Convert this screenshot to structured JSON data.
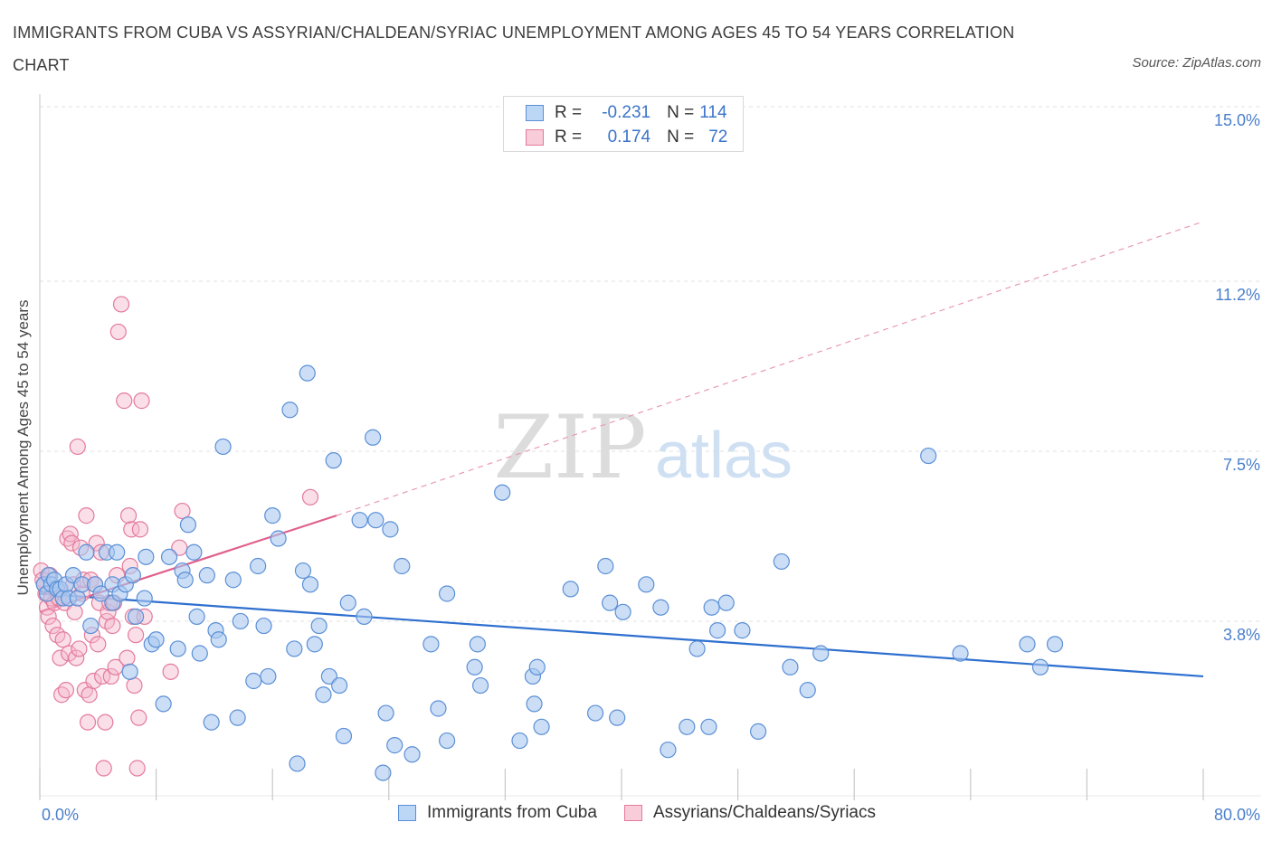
{
  "header": {
    "title": "IMMIGRANTS FROM CUBA VS ASSYRIAN/CHALDEAN/SYRIAC UNEMPLOYMENT AMONG AGES 45 TO 54 YEARS CORRELATION CHART",
    "source": "Source: ZipAtlas.com"
  },
  "watermark": {
    "zip": "ZIP",
    "atlas": "atlas"
  },
  "legend": {
    "rows": [
      {
        "r_label": "R =",
        "r_value": "-0.231",
        "n_label": "N =",
        "n_value": "114",
        "color": "#a8c8f0"
      },
      {
        "r_label": "R =",
        "r_value": "0.174",
        "n_label": "N =",
        "n_value": "72",
        "color": "#f5b8cb"
      }
    ]
  },
  "bottom_legend": {
    "items": [
      {
        "label": "Immigrants from Cuba",
        "color": "#a8c8f0"
      },
      {
        "label": "Assyrians/Chaldeans/Syriacs",
        "color": "#f5b8cb"
      }
    ]
  },
  "colors": {
    "blue_fill": "#a8c8f0",
    "blue_stroke": "#5b8fd6",
    "blue_line": "#2e6fcf",
    "pink_fill": "#f5b8cb",
    "pink_stroke": "#e47a9c",
    "pink_line": "#e0608c",
    "axis_text": "#4a7fcb"
  },
  "chart_data": {
    "type": "scatter",
    "title": "IMMIGRANTS FROM CUBA VS ASSYRIAN/CHALDEAN/SYRIAC UNEMPLOYMENT AMONG AGES 45 TO 54 YEARS CORRELATION CHART",
    "xlabel": "",
    "ylabel": "Unemployment Among Ages 45 to 54 years",
    "xlim": [
      0,
      80
    ],
    "ylim": [
      0,
      15
    ],
    "x_tick_labels": [
      "0.0%",
      "80.0%"
    ],
    "y_ticks": [
      3.8,
      7.5,
      11.2,
      15.0
    ],
    "y_tick_labels": [
      "3.8%",
      "7.5%",
      "11.2%",
      "15.0%"
    ],
    "grid": true,
    "legend_position": "top-center",
    "series": [
      {
        "name": "Immigrants from Cuba",
        "stats": {
          "R": -0.231,
          "N": 114
        },
        "trend": {
          "x0": 0,
          "y0": 4.4,
          "x1": 80,
          "y1": 2.6,
          "dashed_from": null
        },
        "points": [
          [
            0.3,
            4.6
          ],
          [
            0.5,
            4.4
          ],
          [
            0.6,
            4.8
          ],
          [
            0.8,
            4.6
          ],
          [
            1.0,
            4.7
          ],
          [
            1.2,
            4.5
          ],
          [
            1.4,
            4.5
          ],
          [
            1.6,
            4.3
          ],
          [
            1.8,
            4.6
          ],
          [
            2.0,
            4.3
          ],
          [
            2.3,
            4.8
          ],
          [
            2.6,
            4.3
          ],
          [
            2.9,
            4.6
          ],
          [
            3.2,
            5.3
          ],
          [
            3.5,
            3.7
          ],
          [
            3.8,
            4.6
          ],
          [
            4.2,
            4.4
          ],
          [
            4.6,
            5.3
          ],
          [
            5.0,
            4.6
          ],
          [
            5.0,
            4.2
          ],
          [
            5.3,
            5.3
          ],
          [
            5.5,
            4.4
          ],
          [
            5.9,
            4.6
          ],
          [
            6.2,
            2.7
          ],
          [
            6.4,
            4.8
          ],
          [
            6.6,
            3.9
          ],
          [
            7.2,
            4.3
          ],
          [
            7.3,
            5.2
          ],
          [
            7.7,
            3.3
          ],
          [
            8.0,
            3.4
          ],
          [
            8.5,
            2.0
          ],
          [
            8.9,
            5.2
          ],
          [
            9.5,
            3.2
          ],
          [
            9.8,
            4.9
          ],
          [
            10.0,
            4.7
          ],
          [
            10.2,
            5.9
          ],
          [
            10.6,
            5.3
          ],
          [
            10.8,
            3.9
          ],
          [
            11.0,
            3.1
          ],
          [
            11.5,
            4.8
          ],
          [
            11.8,
            1.6
          ],
          [
            12.1,
            3.6
          ],
          [
            12.3,
            3.4
          ],
          [
            12.6,
            7.6
          ],
          [
            13.3,
            4.7
          ],
          [
            13.6,
            1.7
          ],
          [
            13.8,
            3.8
          ],
          [
            14.7,
            2.5
          ],
          [
            15.0,
            5.0
          ],
          [
            15.4,
            3.7
          ],
          [
            15.7,
            2.6
          ],
          [
            16.0,
            6.1
          ],
          [
            16.4,
            5.6
          ],
          [
            17.2,
            8.4
          ],
          [
            17.5,
            3.2
          ],
          [
            17.7,
            0.7
          ],
          [
            18.1,
            4.9
          ],
          [
            18.4,
            9.2
          ],
          [
            18.6,
            4.6
          ],
          [
            18.9,
            3.3
          ],
          [
            19.2,
            3.7
          ],
          [
            19.5,
            2.2
          ],
          [
            19.9,
            2.6
          ],
          [
            20.2,
            7.3
          ],
          [
            20.6,
            2.4
          ],
          [
            20.9,
            1.3
          ],
          [
            21.2,
            4.2
          ],
          [
            22.0,
            6.0
          ],
          [
            22.3,
            3.9
          ],
          [
            22.9,
            7.8
          ],
          [
            23.1,
            6.0
          ],
          [
            23.6,
            0.5
          ],
          [
            23.8,
            1.8
          ],
          [
            24.1,
            5.8
          ],
          [
            24.4,
            1.1
          ],
          [
            24.9,
            5.0
          ],
          [
            25.6,
            0.9
          ],
          [
            26.9,
            3.3
          ],
          [
            27.4,
            1.9
          ],
          [
            28.0,
            1.2
          ],
          [
            28.0,
            4.4
          ],
          [
            29.9,
            2.8
          ],
          [
            30.1,
            3.3
          ],
          [
            30.3,
            2.4
          ],
          [
            31.8,
            6.6
          ],
          [
            33.0,
            1.2
          ],
          [
            33.9,
            2.6
          ],
          [
            34.0,
            2.0
          ],
          [
            34.2,
            2.8
          ],
          [
            34.5,
            1.5
          ],
          [
            36.5,
            4.5
          ],
          [
            38.2,
            1.8
          ],
          [
            38.9,
            5.0
          ],
          [
            39.2,
            4.2
          ],
          [
            39.7,
            1.7
          ],
          [
            40.1,
            4.0
          ],
          [
            41.7,
            4.6
          ],
          [
            42.7,
            4.1
          ],
          [
            43.2,
            1.0
          ],
          [
            44.5,
            1.5
          ],
          [
            45.2,
            3.2
          ],
          [
            46.0,
            1.5
          ],
          [
            46.2,
            4.1
          ],
          [
            46.6,
            3.6
          ],
          [
            47.2,
            4.2
          ],
          [
            48.3,
            3.6
          ],
          [
            49.4,
            1.4
          ],
          [
            51.0,
            5.1
          ],
          [
            51.6,
            2.8
          ],
          [
            52.8,
            2.3
          ],
          [
            53.7,
            3.1
          ],
          [
            61.1,
            7.4
          ],
          [
            63.3,
            3.1
          ],
          [
            67.9,
            3.3
          ],
          [
            68.8,
            2.8
          ],
          [
            69.8,
            3.3
          ]
        ]
      },
      {
        "name": "Assyrians/Chaldeans/Syriacs",
        "stats": {
          "R": 0.174,
          "N": 72
        },
        "trend": {
          "x0": 0,
          "y0": 4.0,
          "x1": 20.4,
          "y1": 6.1,
          "dashed_to": [
            80,
            12.5
          ]
        },
        "points": [
          [
            0.1,
            4.9
          ],
          [
            0.2,
            4.7
          ],
          [
            0.3,
            4.6
          ],
          [
            0.4,
            4.4
          ],
          [
            0.5,
            4.1
          ],
          [
            0.6,
            3.9
          ],
          [
            0.7,
            4.8
          ],
          [
            0.8,
            4.3
          ],
          [
            0.9,
            3.7
          ],
          [
            1.0,
            4.2
          ],
          [
            1.1,
            4.5
          ],
          [
            1.2,
            3.5
          ],
          [
            1.3,
            4.3
          ],
          [
            1.4,
            3.0
          ],
          [
            1.5,
            2.2
          ],
          [
            1.6,
            3.4
          ],
          [
            1.7,
            4.2
          ],
          [
            1.8,
            2.3
          ],
          [
            1.9,
            5.6
          ],
          [
            2.0,
            3.1
          ],
          [
            2.1,
            5.7
          ],
          [
            2.2,
            5.5
          ],
          [
            2.3,
            4.6
          ],
          [
            2.4,
            4.0
          ],
          [
            2.5,
            3.0
          ],
          [
            2.6,
            7.6
          ],
          [
            2.7,
            3.2
          ],
          [
            2.8,
            5.4
          ],
          [
            2.9,
            4.4
          ],
          [
            3.0,
            4.7
          ],
          [
            3.1,
            2.3
          ],
          [
            3.2,
            6.1
          ],
          [
            3.3,
            1.6
          ],
          [
            3.4,
            2.2
          ],
          [
            3.5,
            4.7
          ],
          [
            3.6,
            3.5
          ],
          [
            3.7,
            2.5
          ],
          [
            3.8,
            4.6
          ],
          [
            3.9,
            5.5
          ],
          [
            4.0,
            3.3
          ],
          [
            4.1,
            4.2
          ],
          [
            4.2,
            5.3
          ],
          [
            4.3,
            2.6
          ],
          [
            4.4,
            0.6
          ],
          [
            4.5,
            1.6
          ],
          [
            4.6,
            3.8
          ],
          [
            4.7,
            4.0
          ],
          [
            4.8,
            4.2
          ],
          [
            4.9,
            2.6
          ],
          [
            5.0,
            3.7
          ],
          [
            5.1,
            4.2
          ],
          [
            5.2,
            2.8
          ],
          [
            5.3,
            4.8
          ],
          [
            5.4,
            10.1
          ],
          [
            5.6,
            10.7
          ],
          [
            5.8,
            8.6
          ],
          [
            6.0,
            3.0
          ],
          [
            6.1,
            6.1
          ],
          [
            6.2,
            5.0
          ],
          [
            6.3,
            5.8
          ],
          [
            6.4,
            3.9
          ],
          [
            6.5,
            2.4
          ],
          [
            6.6,
            3.5
          ],
          [
            6.7,
            0.6
          ],
          [
            6.8,
            1.7
          ],
          [
            6.9,
            5.8
          ],
          [
            7.0,
            8.6
          ],
          [
            7.2,
            3.9
          ],
          [
            9.0,
            2.7
          ],
          [
            9.6,
            5.4
          ],
          [
            9.8,
            6.2
          ],
          [
            18.6,
            6.5
          ]
        ]
      }
    ]
  }
}
